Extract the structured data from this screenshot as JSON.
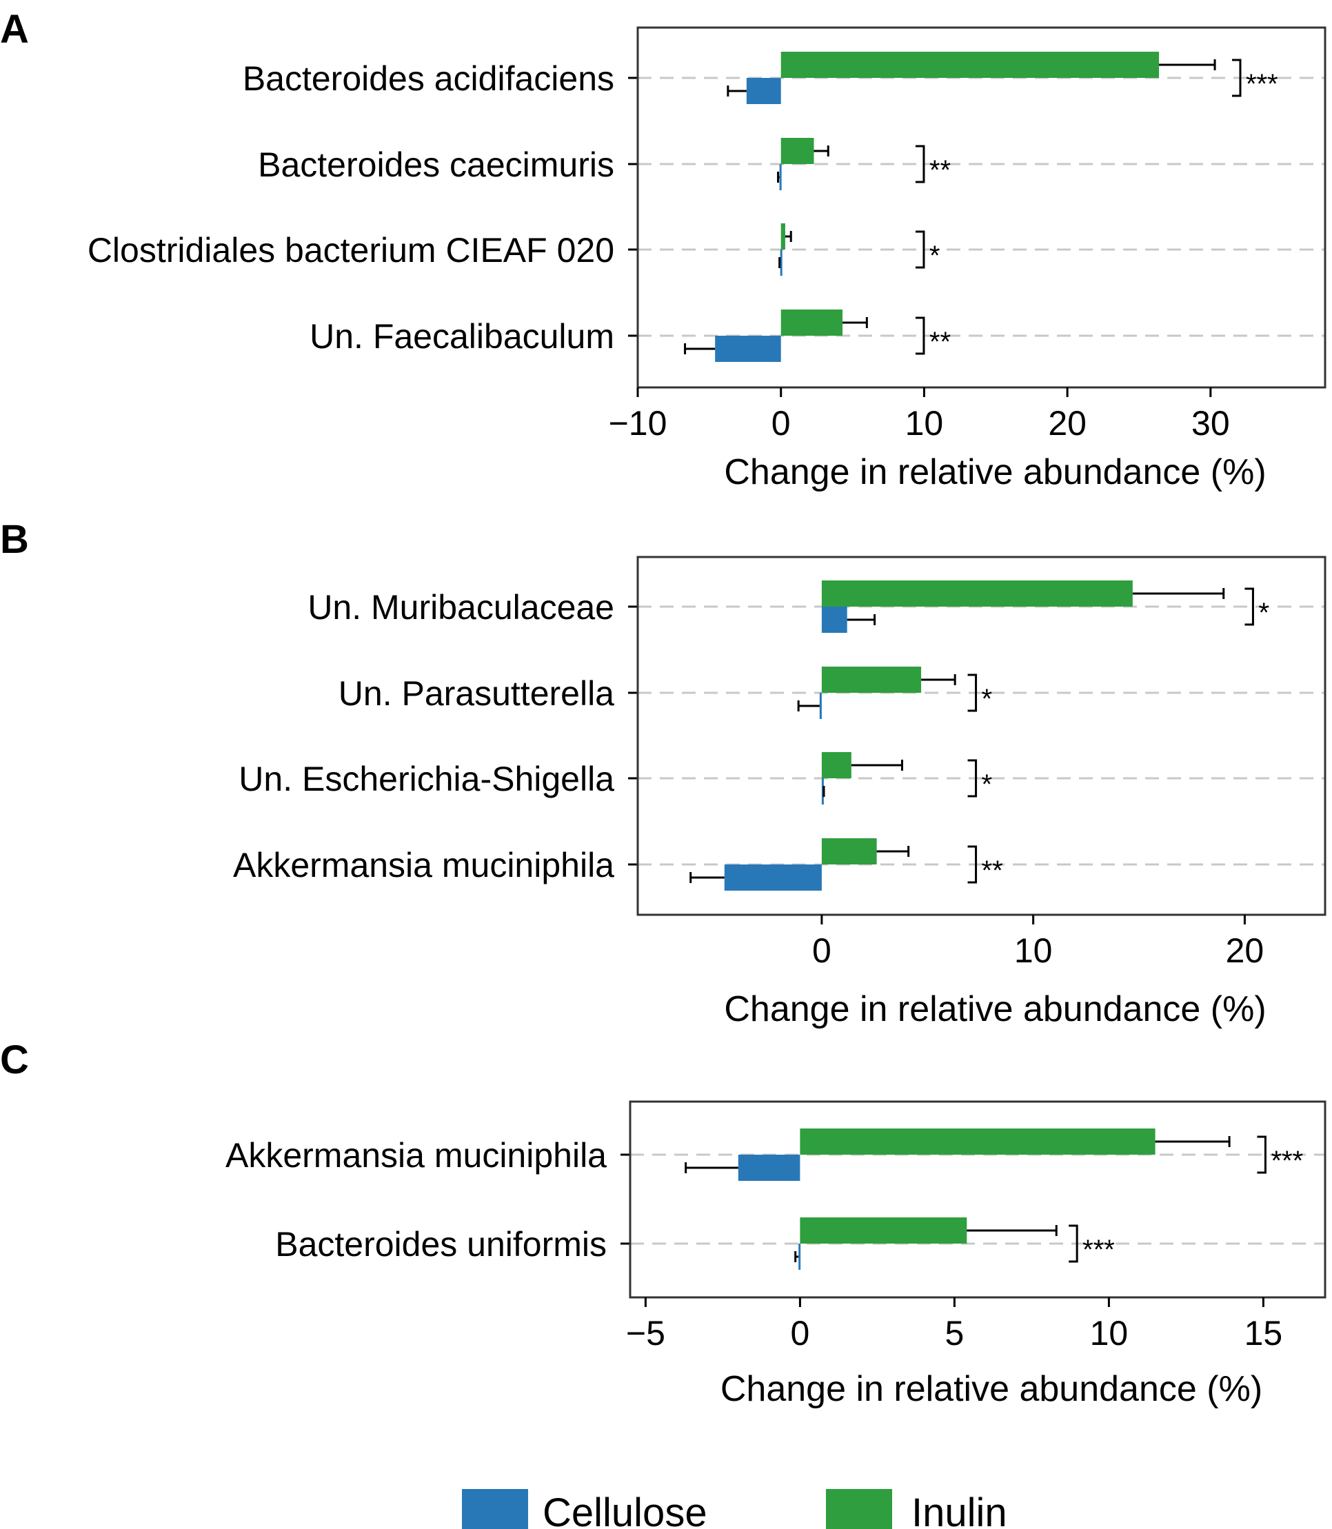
{
  "legend": [
    {
      "label": "Cellulose",
      "color": "#2878b8"
    },
    {
      "label": "Inulin",
      "color": "#2e9e3e"
    }
  ],
  "chart_data": [
    {
      "panel": "A",
      "type": "bar",
      "orientation": "horizontal",
      "xlabel": "Change in relative abundance (%)",
      "xlim": [
        -10,
        38
      ],
      "xticks": [
        -10,
        0,
        10,
        20,
        30
      ],
      "xtick_labels": [
        "−10",
        "0",
        "10",
        "20",
        "30"
      ],
      "grid": "dashed horizontal at each category",
      "categories": [
        "Bacteroides acidifaciens",
        "Bacteroides caecimuris",
        "Clostridiales bacterium CIEAF 020",
        "Un. Faecalibaculum"
      ],
      "series": [
        {
          "name": "Cellulose",
          "color": "#2878b8",
          "values": [
            -2.4,
            -0.1,
            -0.05,
            -4.6
          ],
          "errors": [
            1.3,
            0.1,
            0.05,
            2.1
          ]
        },
        {
          "name": "Inulin",
          "color": "#2e9e3e",
          "values": [
            26.4,
            2.3,
            0.3,
            4.3
          ],
          "errors": [
            3.9,
            1.0,
            0.4,
            1.7
          ]
        }
      ],
      "significance": [
        "***",
        "**",
        "*",
        "**"
      ],
      "significance_x": [
        31.5,
        9.4,
        9.4,
        9.4
      ]
    },
    {
      "panel": "B",
      "type": "bar",
      "orientation": "horizontal",
      "xlabel": "Change in relative abundance (%)",
      "xlim": [
        -8.7,
        23.8
      ],
      "xticks": [
        0,
        10,
        20
      ],
      "xtick_labels": [
        "0",
        "10",
        "20"
      ],
      "grid": "dashed horizontal at each category",
      "categories": [
        "Un. Muribaculaceae",
        "Un. Parasutterella",
        "Un. Escherichia-Shigella",
        "Akkermansia muciniphila"
      ],
      "series": [
        {
          "name": "Cellulose",
          "color": "#2878b8",
          "values": [
            1.2,
            -0.1,
            0.05,
            -4.6
          ],
          "errors": [
            1.3,
            1.0,
            0.05,
            1.6
          ]
        },
        {
          "name": "Inulin",
          "color": "#2e9e3e",
          "values": [
            14.7,
            4.7,
            1.4,
            2.6
          ],
          "errors": [
            4.3,
            1.6,
            2.4,
            1.5
          ]
        }
      ],
      "significance": [
        "*",
        "*",
        "*",
        "**"
      ],
      "significance_x": [
        20.0,
        6.9,
        6.9,
        6.9
      ]
    },
    {
      "panel": "C",
      "type": "bar",
      "orientation": "horizontal",
      "xlabel": "Change in relative abundance (%)",
      "xlim": [
        -5.5,
        17
      ],
      "xticks": [
        -5,
        0,
        5,
        10,
        15
      ],
      "xtick_labels": [
        "−5",
        "0",
        "5",
        "10",
        "15"
      ],
      "grid": "dashed horizontal at each category",
      "categories": [
        "Akkermansia muciniphila",
        "Bacteroides uniformis"
      ],
      "series": [
        {
          "name": "Cellulose",
          "color": "#2878b8",
          "values": [
            -2.0,
            -0.05
          ],
          "errors": [
            1.7,
            0.1
          ]
        },
        {
          "name": "Inulin",
          "color": "#2e9e3e",
          "values": [
            11.5,
            5.4
          ],
          "errors": [
            2.4,
            2.9
          ]
        }
      ],
      "significance": [
        "***",
        "***"
      ],
      "significance_x": [
        14.8,
        8.7
      ]
    }
  ]
}
